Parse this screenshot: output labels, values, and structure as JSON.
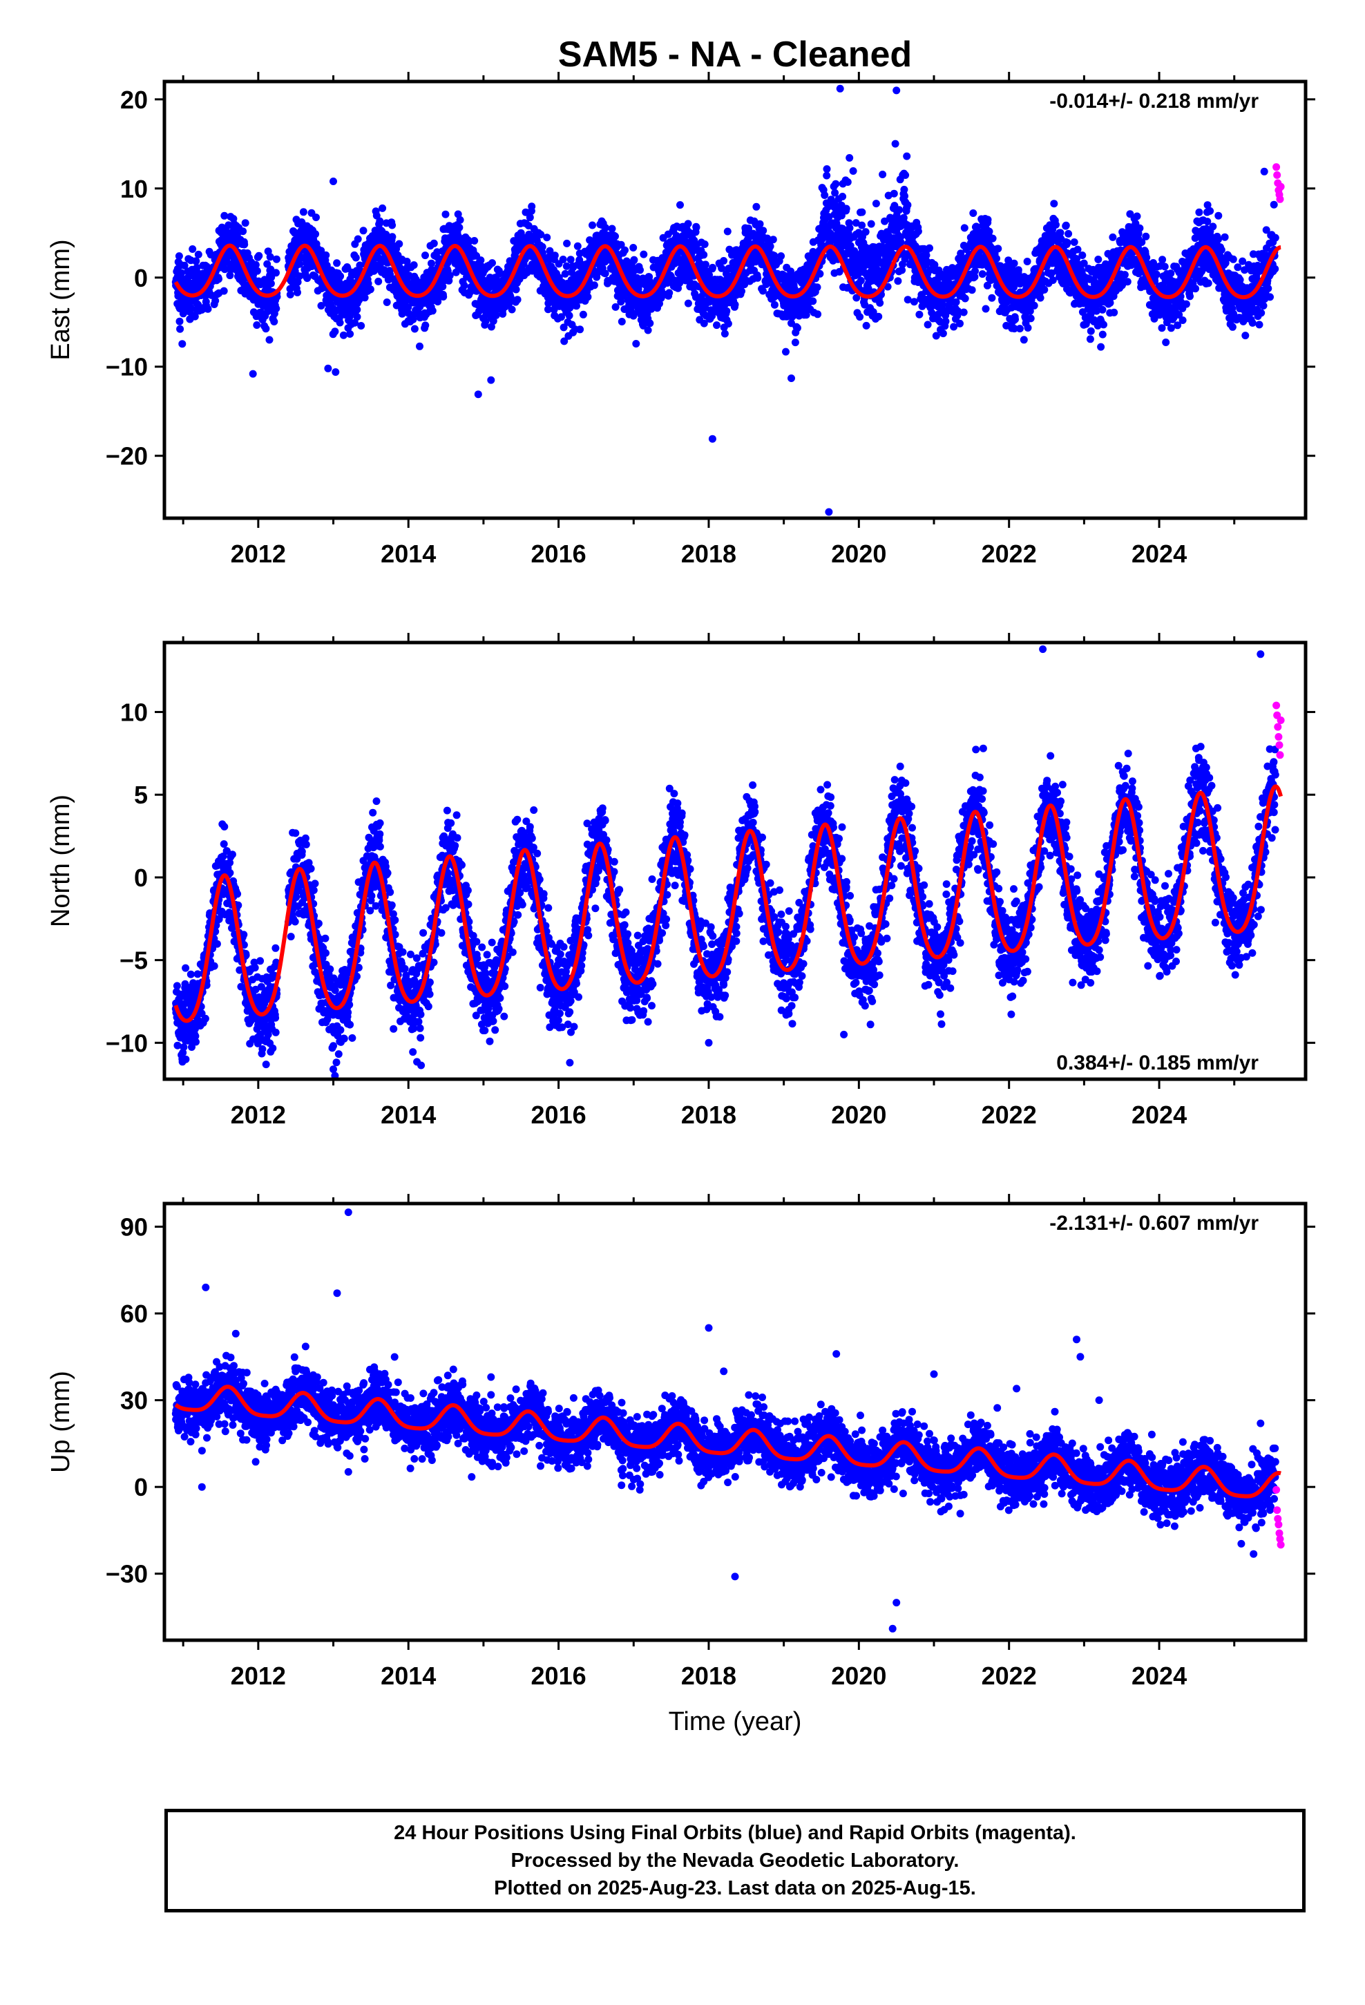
{
  "title": "SAM5  - NA - Cleaned",
  "colors": {
    "final_orbits": "#0000ff",
    "rapid_orbits": "#ff00ff",
    "model_fit": "#ff0000",
    "frame": "#000000"
  },
  "footer": {
    "line1": "24 Hour Positions Using Final Orbits (blue) and Rapid Orbits (magenta).",
    "line2": "Processed by the Nevada Geodetic Laboratory.",
    "line3": "Plotted on 2025-Aug-23. Last data on 2025-Aug-15."
  },
  "chart_data": [
    {
      "type": "scatter",
      "component": "east",
      "ylabel": "East (mm)",
      "xlabel": "",
      "xlim": [
        2010.75,
        2025.95
      ],
      "ylim": [
        -27,
        22
      ],
      "xticks": [
        2012,
        2014,
        2016,
        2018,
        2020,
        2022,
        2024
      ],
      "xtick_labels": [
        "2012",
        "2014",
        "2016",
        "2018",
        "2020",
        "2022",
        "2024"
      ],
      "yticks": [
        -20,
        -10,
        0,
        10,
        20
      ],
      "ytick_labels": [
        "−20",
        "−10",
        "0",
        "10",
        "20"
      ],
      "rate_label": "-0.014+/- 0.218 mm/yr",
      "rate_label_position": "top-right",
      "grid": false,
      "data_start": 2010.9,
      "data_end": 2025.62,
      "rapid_start": 2025.55,
      "model": {
        "offset": 0.3,
        "trend_per_year": -0.014,
        "annual_amplitude": 2.8,
        "annual_peak_fraction": 0.62,
        "semiannual_amplitude": 0.4
      },
      "scatter_sd": 1.8,
      "transient": {
        "start": 2019.5,
        "end": 2020.65,
        "extra_sd": 4.5,
        "description_values": [
          8,
          21
        ]
      },
      "outliers": [
        [
          2013.0,
          10.8
        ],
        [
          2012.93,
          -10.2
        ],
        [
          2013.03,
          -10.6
        ],
        [
          2011.93,
          -10.8
        ],
        [
          2014.93,
          -13.1
        ],
        [
          2015.1,
          -11.5
        ],
        [
          2018.05,
          -18.1
        ],
        [
          2019.6,
          -26.3
        ],
        [
          2019.1,
          -11.3
        ],
        [
          2019.75,
          21.2
        ],
        [
          2020.5,
          21.0
        ],
        [
          2025.4,
          11.9
        ]
      ],
      "rapid_points": [
        [
          2025.56,
          12.4
        ],
        [
          2025.57,
          11.5
        ],
        [
          2025.58,
          10.6
        ],
        [
          2025.59,
          9.8
        ],
        [
          2025.6,
          9.3
        ],
        [
          2025.61,
          8.8
        ],
        [
          2025.62,
          10.2
        ]
      ]
    },
    {
      "type": "scatter",
      "component": "north",
      "ylabel": "North (mm)",
      "xlabel": "",
      "xlim": [
        2010.75,
        2025.95
      ],
      "ylim": [
        -12.2,
        14.2
      ],
      "xticks": [
        2012,
        2014,
        2016,
        2018,
        2020,
        2022,
        2024
      ],
      "xtick_labels": [
        "2012",
        "2014",
        "2016",
        "2018",
        "2020",
        "2022",
        "2024"
      ],
      "yticks": [
        -10,
        -5,
        0,
        5,
        10
      ],
      "ytick_labels": [
        "−10",
        "−5",
        "0",
        "5",
        "10"
      ],
      "rate_label": "0.384+/- 0.185 mm/yr",
      "rate_label_position": "bottom-right",
      "grid": false,
      "data_start": 2010.9,
      "data_end": 2025.62,
      "rapid_start": 2025.55,
      "model": {
        "offset": -2.3,
        "trend_per_year": 0.384,
        "annual_amplitude": 4.3,
        "annual_peak_fraction": 0.55,
        "semiannual_amplitude": 0.6
      },
      "scatter_sd": 1.3,
      "outliers": [
        [
          2013.0,
          -11.6
        ],
        [
          2016.15,
          -11.2
        ],
        [
          2018.0,
          -10.0
        ],
        [
          2019.8,
          -9.5
        ],
        [
          2022.45,
          13.8
        ],
        [
          2025.35,
          13.5
        ]
      ],
      "rapid_points": [
        [
          2025.56,
          10.4
        ],
        [
          2025.57,
          9.8
        ],
        [
          2025.58,
          9.1
        ],
        [
          2025.59,
          8.5
        ],
        [
          2025.6,
          8.0
        ],
        [
          2025.61,
          7.4
        ],
        [
          2025.62,
          9.5
        ]
      ]
    },
    {
      "type": "scatter",
      "component": "up",
      "ylabel": "Up (mm)",
      "xlabel": "Time (year)",
      "xlim": [
        2010.75,
        2025.95
      ],
      "ylim": [
        -53,
        98
      ],
      "xticks": [
        2012,
        2014,
        2016,
        2018,
        2020,
        2022,
        2024
      ],
      "xtick_labels": [
        "2012",
        "2014",
        "2016",
        "2018",
        "2020",
        "2022",
        "2024"
      ],
      "yticks": [
        -30,
        0,
        30,
        60,
        90
      ],
      "ytick_labels": [
        "−30",
        "0",
        "30",
        "60",
        "90"
      ],
      "rate_label": "-2.131+/- 0.607 mm/yr",
      "rate_label_position": "top-right",
      "grid": false,
      "data_start": 2010.9,
      "data_end": 2025.62,
      "rapid_start": 2025.55,
      "model": {
        "offset": 15.5,
        "trend_per_year": -2.131,
        "annual_amplitude": 4.5,
        "annual_peak_fraction": 0.6,
        "semiannual_amplitude": 1.0
      },
      "scatter_sd": 5.0,
      "outliers": [
        [
          2013.2,
          95
        ],
        [
          2011.3,
          69
        ],
        [
          2013.05,
          67
        ],
        [
          2011.7,
          53
        ],
        [
          2018.0,
          55
        ],
        [
          2022.9,
          51
        ],
        [
          2022.95,
          45
        ],
        [
          2019.7,
          46
        ],
        [
          2021.0,
          39
        ],
        [
          2018.2,
          40
        ],
        [
          2015.1,
          38
        ],
        [
          2014.4,
          37
        ],
        [
          2023.2,
          30
        ],
        [
          2022.1,
          34
        ],
        [
          2025.35,
          22
        ],
        [
          2020.5,
          -40
        ],
        [
          2020.45,
          -49
        ],
        [
          2018.35,
          -31
        ],
        [
          2011.25,
          0
        ]
      ],
      "rapid_points": [
        [
          2025.56,
          -1
        ],
        [
          2025.57,
          -8
        ],
        [
          2025.58,
          -11
        ],
        [
          2025.59,
          -13
        ],
        [
          2025.6,
          -16
        ],
        [
          2025.61,
          -18
        ],
        [
          2025.62,
          -20
        ]
      ]
    }
  ]
}
